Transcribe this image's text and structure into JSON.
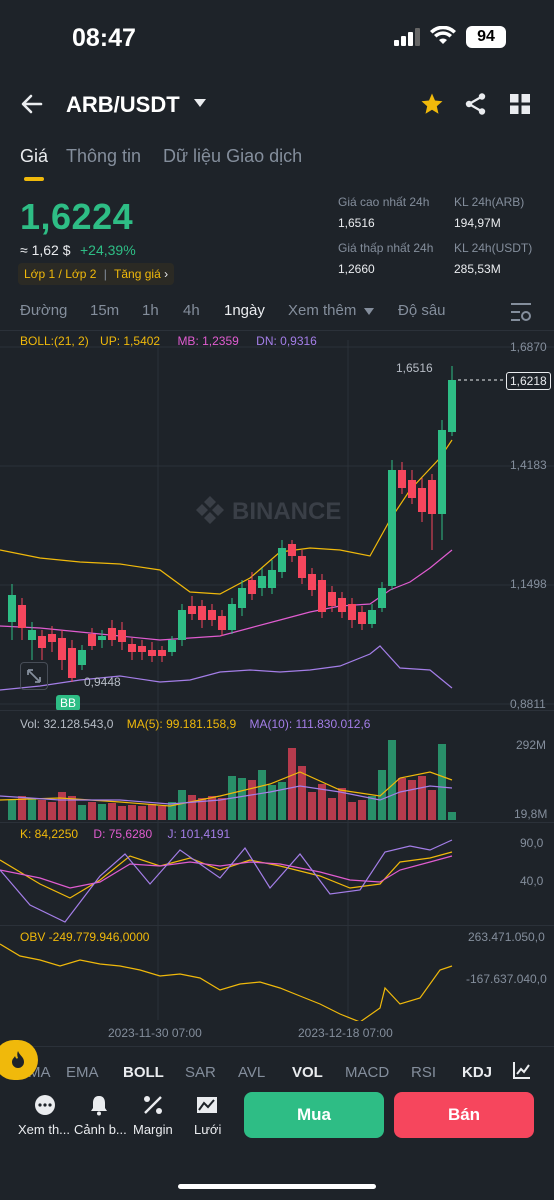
{
  "status_bar": {
    "time": "08:47",
    "battery": "94"
  },
  "header": {
    "pair": "ARB/USDT"
  },
  "tabs": [
    {
      "label": "Giá"
    },
    {
      "label": "Thông tin"
    },
    {
      "label": "Dữ liệu Giao dịch"
    }
  ],
  "ticker": {
    "price": "1,6224",
    "approx": "≈ 1,62 $",
    "change": "+24,39%",
    "tag_layer": "Lớp 1 / Lớp 2",
    "tag_trend": "Tăng giá",
    "high_label": "Giá cao nhất 24h",
    "high_value": "1,6516",
    "low_label": "Giá thấp nhất 24h",
    "low_value": "1,2660",
    "vol_arb_label": "KL 24h(ARB)",
    "vol_arb_value": "194,97M",
    "vol_usdt_label": "KL 24h(USDT)",
    "vol_usdt_value": "285,53M"
  },
  "timeframes": [
    "Đường",
    "15m",
    "1h",
    "4h",
    "1ngày",
    "Xem thêm",
    "Độ sâu"
  ],
  "active_timeframe": "1ngày",
  "main_chart": {
    "boll_label": "BOLL:(21, 2)",
    "up": "UP: 1,5402",
    "mb": "MB: 1,2359",
    "dn": "DN: 0,9316",
    "y_ticks": [
      "1,6870",
      "1,4183",
      "1,1498",
      "0,8811"
    ],
    "current_price": "1,6218",
    "high_marker": "1,6516",
    "low_marker": "0,9448",
    "bb_badge": "BB",
    "watermark": "BINANCE"
  },
  "volume_chart": {
    "vol_label": "Vol: 32.128.543,0",
    "ma5_label": "MA(5): 99.181.158,9",
    "ma10_label": "MA(10): 111.830.012,6",
    "y_ticks": [
      "292M",
      "19,8M"
    ]
  },
  "kdj_chart": {
    "k_label": "K: 84,2250",
    "d_label": "D: 75,6280",
    "j_label": "J: 101,4191",
    "y_ticks": [
      "90,0",
      "40,0"
    ]
  },
  "obv_chart": {
    "obv_label": "OBV -249.779.946,0000",
    "y_ticks": [
      "263.471.050,0",
      "-167.637.040,0"
    ]
  },
  "x_dates": [
    "2023-11-30 07:00",
    "2023-12-18 07:00"
  ],
  "indicator_tabs": [
    "MA",
    "EMA",
    "BOLL",
    "SAR",
    "AVL",
    "VOL",
    "MACD",
    "RSI",
    "KDJ"
  ],
  "actions": [
    {
      "label": "Xem th...",
      "icon": "more-icon"
    },
    {
      "label": "Cảnh b...",
      "icon": "bell-icon"
    },
    {
      "label": "Margin",
      "icon": "margin-icon"
    },
    {
      "label": "Lưới",
      "icon": "grid-bot-icon"
    }
  ],
  "buy_label": "Mua",
  "sell_label": "Bán",
  "colors": {
    "up": "#2ebd85",
    "down": "#f6465d",
    "accent": "#f0b90b",
    "bg": "#1e2329"
  }
}
